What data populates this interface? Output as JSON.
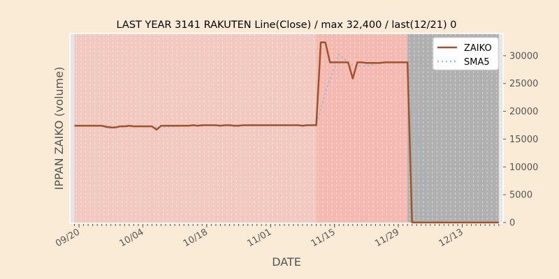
{
  "chart_data": {
    "type": "line",
    "title": "LAST YEAR 3141 RAKUTEN Line(Close) / max 32,400 / last(12/21) 0",
    "xlabel": "DATE",
    "ylabel": "IPPAN ZAIKO (volume)",
    "ylim": [
      0,
      34000
    ],
    "yticks": [
      0,
      5000,
      10000,
      15000,
      20000,
      25000,
      30000
    ],
    "y_axis_side": "right",
    "xtick_labels": [
      "09/20",
      "10/04",
      "10/18",
      "11/01",
      "11/15",
      "11/29",
      "12/13"
    ],
    "grid": "vertical dashed, daily",
    "legend_placement": "top-right",
    "background_color": "#faebd7",
    "axes_color": "#e5e5e5",
    "bands": [
      {
        "from": "09/19",
        "to": "11/11",
        "color": "#f2c9c0"
      },
      {
        "from": "11/11",
        "to": "12/01",
        "color": "#f4bab1"
      },
      {
        "from": "12/01",
        "to": "12/21",
        "color": "#b0b0b0"
      }
    ],
    "x": [
      "09/19",
      "09/20",
      "09/21",
      "09/22",
      "09/23",
      "09/24",
      "09/25",
      "09/26",
      "09/27",
      "09/28",
      "09/29",
      "09/30",
      "10/01",
      "10/02",
      "10/03",
      "10/04",
      "10/05",
      "10/06",
      "10/07",
      "10/08",
      "10/09",
      "10/10",
      "10/11",
      "10/12",
      "10/13",
      "10/14",
      "10/15",
      "10/16",
      "10/17",
      "10/18",
      "10/19",
      "10/20",
      "10/21",
      "10/22",
      "10/23",
      "10/24",
      "10/25",
      "10/26",
      "10/27",
      "10/28",
      "10/29",
      "10/30",
      "10/31",
      "11/01",
      "11/02",
      "11/03",
      "11/04",
      "11/05",
      "11/06",
      "11/07",
      "11/08",
      "11/09",
      "11/10",
      "11/11",
      "11/12",
      "11/13",
      "11/14",
      "11/15",
      "11/16",
      "11/17",
      "11/18",
      "11/19",
      "11/20",
      "11/21",
      "11/22",
      "11/23",
      "11/24",
      "11/25",
      "11/26",
      "11/27",
      "11/28",
      "11/29",
      "11/30",
      "12/01",
      "12/02",
      "12/03",
      "12/04",
      "12/05",
      "12/06",
      "12/07",
      "12/08",
      "12/09",
      "12/10",
      "12/11",
      "12/12",
      "12/13",
      "12/14",
      "12/15",
      "12/16",
      "12/17",
      "12/18",
      "12/19",
      "12/20",
      "12/21"
    ],
    "series": [
      {
        "name": "ZAIKO",
        "color": "#a0522d",
        "style": "solid",
        "values": [
          17400,
          17400,
          17400,
          17400,
          17400,
          17400,
          17400,
          17200,
          17100,
          17100,
          17300,
          17300,
          17400,
          17300,
          17300,
          17300,
          17300,
          17300,
          16700,
          17400,
          17400,
          17400,
          17400,
          17400,
          17400,
          17400,
          17500,
          17400,
          17500,
          17500,
          17500,
          17500,
          17400,
          17500,
          17500,
          17400,
          17400,
          17500,
          17500,
          17500,
          17500,
          17500,
          17500,
          17500,
          17500,
          17500,
          17500,
          17500,
          17500,
          17500,
          17400,
          17500,
          17500,
          17500,
          32400,
          32400,
          28800,
          28800,
          28800,
          28800,
          28800,
          25900,
          28800,
          28800,
          28700,
          28700,
          28700,
          28700,
          28800,
          28800,
          28800,
          28800,
          28800,
          28800,
          0,
          0,
          0,
          0,
          0,
          0,
          0,
          0,
          0,
          0,
          0,
          0,
          0,
          0,
          0,
          0,
          0,
          0,
          0,
          0
        ]
      },
      {
        "name": "SMA5",
        "color": "#8fbcd4",
        "style": "dotted",
        "values": [
          null,
          null,
          null,
          null,
          17400,
          17400,
          17400,
          17360,
          17300,
          17240,
          17220,
          17220,
          17240,
          17280,
          17320,
          17300,
          17300,
          17300,
          17180,
          17200,
          17220,
          17240,
          17260,
          17400,
          17400,
          17400,
          17420,
          17420,
          17440,
          17460,
          17480,
          17500,
          17480,
          17480,
          17480,
          17460,
          17440,
          17460,
          17480,
          17500,
          17500,
          17500,
          17500,
          17500,
          17500,
          17500,
          17500,
          17500,
          17500,
          17500,
          17480,
          17480,
          17480,
          17480,
          20480,
          23460,
          25720,
          27980,
          30240,
          29520,
          28800,
          28220,
          28220,
          28220,
          28200,
          28180,
          28740,
          28720,
          28740,
          28760,
          28780,
          28800,
          28800,
          28800,
          23040,
          17280,
          11520,
          5760,
          0,
          0,
          0,
          0,
          0,
          0,
          0,
          0,
          0,
          0,
          0,
          0,
          0,
          0,
          0,
          0
        ]
      }
    ]
  }
}
